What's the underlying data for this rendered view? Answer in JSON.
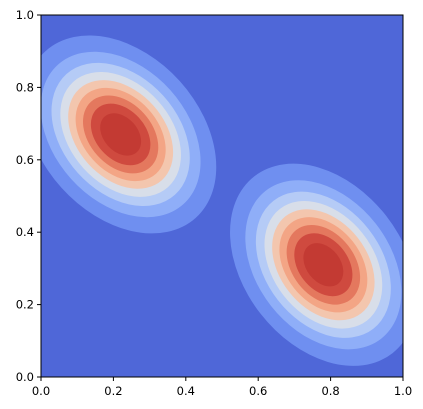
{
  "chart_data": {
    "type": "heatmap",
    "title": "",
    "xlabel": "",
    "ylabel": "",
    "xlim": [
      0,
      1
    ],
    "ylim": [
      0,
      1
    ],
    "xticks": [
      "0.0",
      "0.2",
      "0.4",
      "0.6",
      "0.8",
      "1.0"
    ],
    "yticks": [
      "0.0",
      "0.2",
      "0.4",
      "0.6",
      "0.8",
      "1.0"
    ],
    "grid": false,
    "legend": "none",
    "colormap": "coolwarm",
    "background_color": "#4f67d8",
    "peaks": [
      {
        "x": 0.22,
        "y": 0.67,
        "value": 1.0
      },
      {
        "x": 0.78,
        "y": 0.31,
        "value": 1.0
      }
    ],
    "contour_levels": [
      0.1,
      0.2,
      0.3,
      0.4,
      0.5,
      0.6,
      0.7,
      0.8,
      0.9
    ],
    "level_colors": [
      "#6f8ff0",
      "#8faef8",
      "#b5cbf6",
      "#d8dee9",
      "#f3c6ae",
      "#f3a585",
      "#e4785e",
      "#cf4a3f",
      "#c33a33"
    ]
  }
}
